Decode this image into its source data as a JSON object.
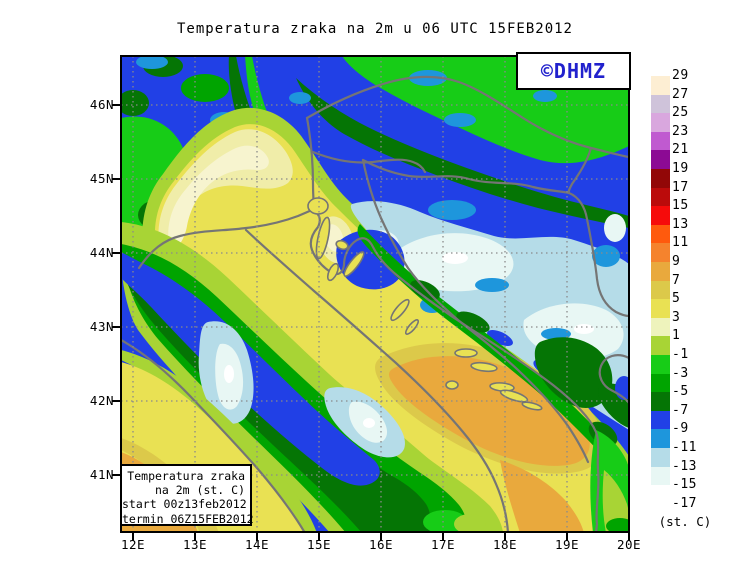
{
  "title": "Temperatura zraka na 2m u 06 UTC 15FEB2012",
  "watermark": "©DHMZ",
  "legend_box": {
    "lines": [
      "Temperatura zraka",
      "na 2m (st. C)",
      "start 00z13feb2012",
      "termin 06Z15FEB2012"
    ]
  },
  "axes": {
    "lat_labels": [
      "46N",
      "45N",
      "44N",
      "43N",
      "42N",
      "41N"
    ],
    "lon_labels": [
      "12E",
      "13E",
      "14E",
      "15E",
      "16E",
      "17E",
      "18E",
      "19E",
      "20E"
    ]
  },
  "colorbar": {
    "unit": "(st. C)",
    "labels": [
      "29",
      "27",
      "25",
      "23",
      "21",
      "19",
      "17",
      "15",
      "13",
      "11",
      "9",
      "7",
      "5",
      "3",
      "1",
      "-1",
      "-3",
      "-5",
      "-7",
      "-9",
      "-11",
      "-13",
      "-15",
      "-17"
    ],
    "colors": [
      "#fdeed3",
      "#cfc3da",
      "#d9a7de",
      "#c05ad0",
      "#8c0a94",
      "#920707",
      "#bb0b0b",
      "#f60b0b",
      "#ff5a0d",
      "#f5832d",
      "#e9a93d",
      "#dcc94a",
      "#e9e153",
      "#eef3bc",
      "#a8d435",
      "#17cc17",
      "#00a400",
      "#057505",
      "#2140e6",
      "#1e96dc",
      "#b5dce8",
      "#e8f7f4",
      "#ffffff"
    ]
  },
  "map_colors": {
    "cold_blue": "#2140e6",
    "medium_blue": "#1e96dc",
    "light_blue": "#b5dce8",
    "pale_cyan": "#e8f7f4",
    "dark_green": "#057505",
    "green": "#00a400",
    "bright_green": "#17cc17",
    "yellow_green": "#a8d435",
    "cream": "#f7f4cf",
    "pale_yellow": "#f0eda9",
    "yellow": "#e9e153",
    "mustard": "#dcc94a",
    "orange": "#e9a93d",
    "border_gray": "#757575",
    "watermark_blue": "#2121cd"
  }
}
